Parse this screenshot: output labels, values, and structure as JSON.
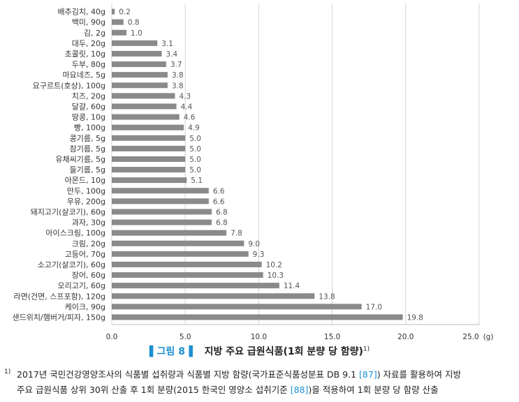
{
  "chart_data": {
    "type": "bar",
    "orientation": "horizontal",
    "categories": [
      "배추김치, 40g",
      "백미, 90g",
      "김, 2g",
      "대두, 20g",
      "초콜릿, 10g",
      "두부, 80g",
      "마요네즈, 5g",
      "요구르트(호상), 100g",
      "치즈, 20g",
      "달걀, 60g",
      "땅콩, 10g",
      "빵, 100g",
      "콩기름, 5g",
      "참기름, 5g",
      "유채씨기름, 5g",
      "들기름, 5g",
      "아몬드, 10g",
      "만두, 100g",
      "우유, 200g",
      "돼지고기(살코기), 60g",
      "과자, 30g",
      "아이스크림, 100g",
      "크림, 20g",
      "고등어, 70g",
      "소고기(살코기), 60g",
      "장어, 60g",
      "오리고기, 60g",
      "라면(건면, 스프포함), 120g",
      "케이크, 90g",
      "샌드위치/햄버거/피자, 150g"
    ],
    "values": [
      0.2,
      0.8,
      1.0,
      3.1,
      3.4,
      3.7,
      3.8,
      3.8,
      4.3,
      4.4,
      4.6,
      4.9,
      5.0,
      5.0,
      5.0,
      5.0,
      5.1,
      6.6,
      6.6,
      6.8,
      6.8,
      7.8,
      9.0,
      9.3,
      10.2,
      10.3,
      11.4,
      13.8,
      17.0,
      19.8
    ],
    "value_labels": [
      "0.2",
      "0.8",
      "1.0",
      "3.1",
      "3.4",
      "3.7",
      "3.8",
      "3.8",
      "4.3",
      "4.4",
      "4.6",
      "4.9",
      "5.0",
      "5.0",
      "5.0",
      "5.0",
      "5.1",
      "6.6",
      "6.6",
      "6.8",
      "6.8",
      "7.8",
      "9.0",
      "9.3",
      "10.2",
      "10.3",
      "11.4",
      "13.8",
      "17.0",
      "19.8"
    ],
    "xlim": [
      0,
      25
    ],
    "xticks": [
      "0.0",
      "5.0",
      "10.0",
      "15.0",
      "20.0",
      "25.0"
    ],
    "xunit": "(g)",
    "grid": "vertical",
    "bar_color": "#8a8a8a",
    "grid_color": "#d4d4d4"
  },
  "caption": {
    "figure_tag": "▌그림 8▐",
    "title": "지방 주요 급원식품(1회 분량 당 함량)",
    "note_mark": "1)"
  },
  "footnote": {
    "mark": "1)",
    "line1_a": "2017년 국민건강영양조사의 식품별 섭취량과 식품별 지방 함량(국가표준식품성분표 DB 9.1 ",
    "line1_ref": "[87]",
    "line1_b": ") 자료를 활용하여 지방",
    "line2_a": "주요 급원식품 상위 30위 산출 후 1회 분량(2015 한국인 영양소 섭취기준 ",
    "line2_ref": "[88]",
    "line2_b": ")을 적용하여 1회 분량 당 함량 산출"
  },
  "colors": {
    "accent": "#1b8fd2",
    "bar": "#8a8a8a"
  }
}
